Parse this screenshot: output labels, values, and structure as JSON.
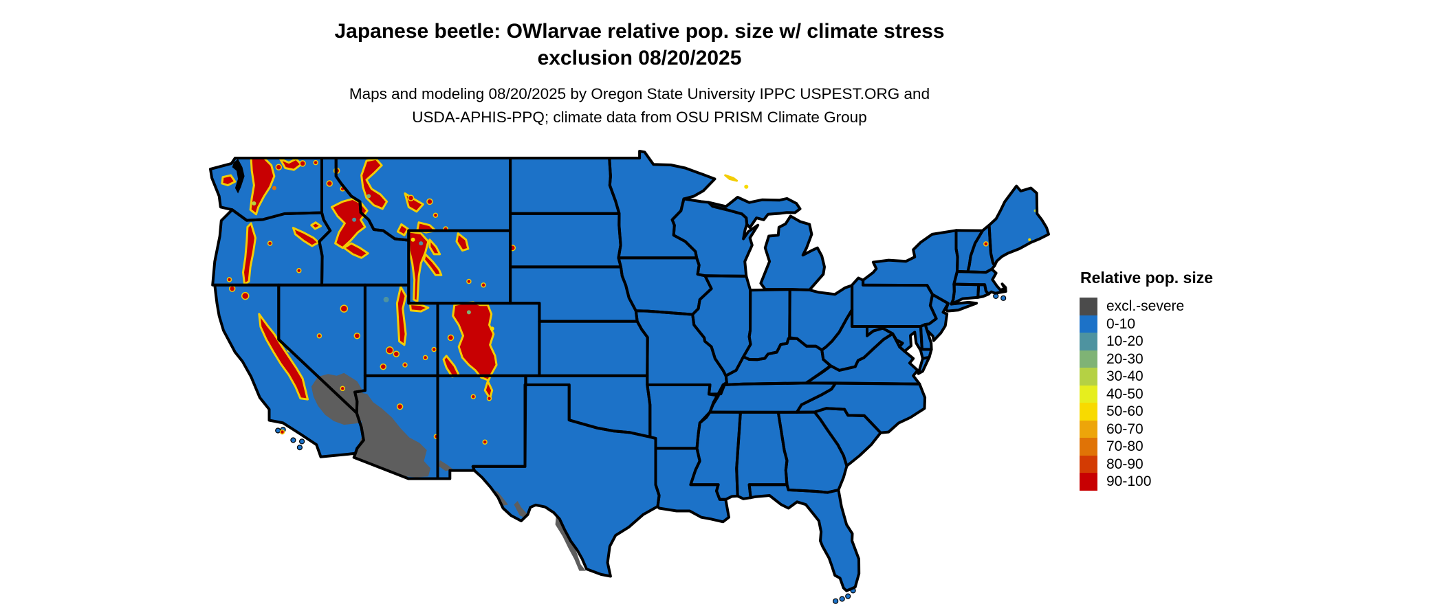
{
  "header": {
    "title_line1": "Japanese beetle: OWlarvae relative pop. size w/ climate stress",
    "title_line2": "exclusion 08/20/2025",
    "subtitle_line1": "Maps and modeling 08/20/2025 by Oregon State University IPPC USPEST.ORG and",
    "subtitle_line2": "USDA-APHIS-PPQ; climate data from OSU PRISM Climate Group"
  },
  "legend": {
    "title": "Relative pop. size",
    "items": [
      {
        "label": "excl.-severe",
        "color": "#4b4b4b"
      },
      {
        "label": "0-10",
        "color": "#1c72c8"
      },
      {
        "label": "10-20",
        "color": "#4e93a0"
      },
      {
        "label": "20-30",
        "color": "#7fb375"
      },
      {
        "label": "30-40",
        "color": "#b5d144"
      },
      {
        "label": "40-50",
        "color": "#e6ee1e"
      },
      {
        "label": "50-60",
        "color": "#f8da00"
      },
      {
        "label": "60-70",
        "color": "#eda50a"
      },
      {
        "label": "70-80",
        "color": "#e07306"
      },
      {
        "label": "80-90",
        "color": "#d33b03"
      },
      {
        "label": "90-100",
        "color": "#c80002"
      }
    ]
  },
  "map": {
    "land_color": "#1c72c8",
    "border_color": "#000000",
    "background_color": "#ffffff",
    "excluded_color": "#5e5e5e",
    "high_color": "#c80002",
    "fringe_color": "#f3cd05"
  }
}
